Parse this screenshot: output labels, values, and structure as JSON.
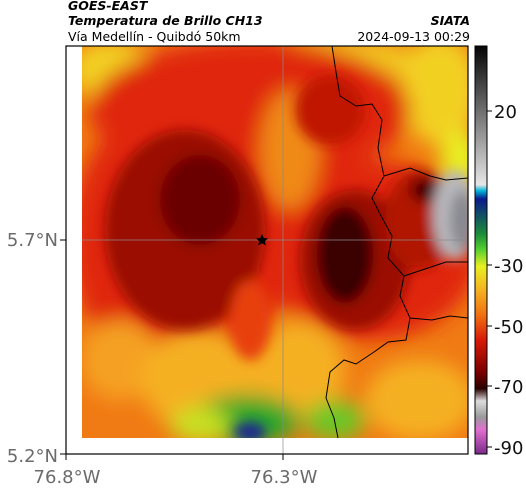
{
  "header": {
    "satellite": "GOES-EAST",
    "product": "Temperatura de Brillo CH13",
    "region": "Vía Medellín - Quibdó 50km",
    "source": "SIATA",
    "datetime": "2024-09-13 00:29"
  },
  "map": {
    "x_ticks": [
      "76.8°W",
      "76.3°W"
    ],
    "y_ticks": [
      "5.7°N",
      "5.2°N"
    ],
    "marker": "station-star",
    "colorbar_ticks": [
      "20",
      "-30",
      "-50",
      "-70",
      "-90"
    ],
    "colors": {
      "very_cold": "#3a0000",
      "cold": "#9a0d00",
      "red": "#e02808",
      "orange": "#f07a14",
      "amber": "#f5b020",
      "yellow": "#f2e020",
      "green": "#2aa82a",
      "blue": "#1a2890",
      "cloud_gray": "#b8b8bc",
      "coast": "#000000"
    }
  }
}
